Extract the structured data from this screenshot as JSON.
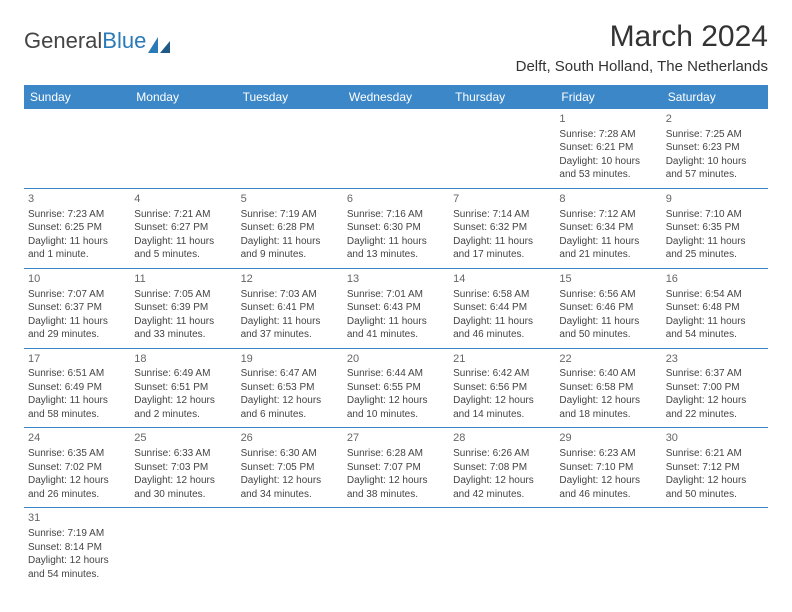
{
  "logo": {
    "text1": "General",
    "text2": "Blue"
  },
  "title": "March 2024",
  "location": "Delft, South Holland, The Netherlands",
  "header_color": "#3b87c8",
  "border_color": "#3b87c8",
  "weekdays": [
    "Sunday",
    "Monday",
    "Tuesday",
    "Wednesday",
    "Thursday",
    "Friday",
    "Saturday"
  ],
  "weeks": [
    [
      null,
      null,
      null,
      null,
      null,
      {
        "d": "1",
        "sr": "Sunrise: 7:28 AM",
        "ss": "Sunset: 6:21 PM",
        "dl": "Daylight: 10 hours and 53 minutes."
      },
      {
        "d": "2",
        "sr": "Sunrise: 7:25 AM",
        "ss": "Sunset: 6:23 PM",
        "dl": "Daylight: 10 hours and 57 minutes."
      }
    ],
    [
      {
        "d": "3",
        "sr": "Sunrise: 7:23 AM",
        "ss": "Sunset: 6:25 PM",
        "dl": "Daylight: 11 hours and 1 minute."
      },
      {
        "d": "4",
        "sr": "Sunrise: 7:21 AM",
        "ss": "Sunset: 6:27 PM",
        "dl": "Daylight: 11 hours and 5 minutes."
      },
      {
        "d": "5",
        "sr": "Sunrise: 7:19 AM",
        "ss": "Sunset: 6:28 PM",
        "dl": "Daylight: 11 hours and 9 minutes."
      },
      {
        "d": "6",
        "sr": "Sunrise: 7:16 AM",
        "ss": "Sunset: 6:30 PM",
        "dl": "Daylight: 11 hours and 13 minutes."
      },
      {
        "d": "7",
        "sr": "Sunrise: 7:14 AM",
        "ss": "Sunset: 6:32 PM",
        "dl": "Daylight: 11 hours and 17 minutes."
      },
      {
        "d": "8",
        "sr": "Sunrise: 7:12 AM",
        "ss": "Sunset: 6:34 PM",
        "dl": "Daylight: 11 hours and 21 minutes."
      },
      {
        "d": "9",
        "sr": "Sunrise: 7:10 AM",
        "ss": "Sunset: 6:35 PM",
        "dl": "Daylight: 11 hours and 25 minutes."
      }
    ],
    [
      {
        "d": "10",
        "sr": "Sunrise: 7:07 AM",
        "ss": "Sunset: 6:37 PM",
        "dl": "Daylight: 11 hours and 29 minutes."
      },
      {
        "d": "11",
        "sr": "Sunrise: 7:05 AM",
        "ss": "Sunset: 6:39 PM",
        "dl": "Daylight: 11 hours and 33 minutes."
      },
      {
        "d": "12",
        "sr": "Sunrise: 7:03 AM",
        "ss": "Sunset: 6:41 PM",
        "dl": "Daylight: 11 hours and 37 minutes."
      },
      {
        "d": "13",
        "sr": "Sunrise: 7:01 AM",
        "ss": "Sunset: 6:43 PM",
        "dl": "Daylight: 11 hours and 41 minutes."
      },
      {
        "d": "14",
        "sr": "Sunrise: 6:58 AM",
        "ss": "Sunset: 6:44 PM",
        "dl": "Daylight: 11 hours and 46 minutes."
      },
      {
        "d": "15",
        "sr": "Sunrise: 6:56 AM",
        "ss": "Sunset: 6:46 PM",
        "dl": "Daylight: 11 hours and 50 minutes."
      },
      {
        "d": "16",
        "sr": "Sunrise: 6:54 AM",
        "ss": "Sunset: 6:48 PM",
        "dl": "Daylight: 11 hours and 54 minutes."
      }
    ],
    [
      {
        "d": "17",
        "sr": "Sunrise: 6:51 AM",
        "ss": "Sunset: 6:49 PM",
        "dl": "Daylight: 11 hours and 58 minutes."
      },
      {
        "d": "18",
        "sr": "Sunrise: 6:49 AM",
        "ss": "Sunset: 6:51 PM",
        "dl": "Daylight: 12 hours and 2 minutes."
      },
      {
        "d": "19",
        "sr": "Sunrise: 6:47 AM",
        "ss": "Sunset: 6:53 PM",
        "dl": "Daylight: 12 hours and 6 minutes."
      },
      {
        "d": "20",
        "sr": "Sunrise: 6:44 AM",
        "ss": "Sunset: 6:55 PM",
        "dl": "Daylight: 12 hours and 10 minutes."
      },
      {
        "d": "21",
        "sr": "Sunrise: 6:42 AM",
        "ss": "Sunset: 6:56 PM",
        "dl": "Daylight: 12 hours and 14 minutes."
      },
      {
        "d": "22",
        "sr": "Sunrise: 6:40 AM",
        "ss": "Sunset: 6:58 PM",
        "dl": "Daylight: 12 hours and 18 minutes."
      },
      {
        "d": "23",
        "sr": "Sunrise: 6:37 AM",
        "ss": "Sunset: 7:00 PM",
        "dl": "Daylight: 12 hours and 22 minutes."
      }
    ],
    [
      {
        "d": "24",
        "sr": "Sunrise: 6:35 AM",
        "ss": "Sunset: 7:02 PM",
        "dl": "Daylight: 12 hours and 26 minutes."
      },
      {
        "d": "25",
        "sr": "Sunrise: 6:33 AM",
        "ss": "Sunset: 7:03 PM",
        "dl": "Daylight: 12 hours and 30 minutes."
      },
      {
        "d": "26",
        "sr": "Sunrise: 6:30 AM",
        "ss": "Sunset: 7:05 PM",
        "dl": "Daylight: 12 hours and 34 minutes."
      },
      {
        "d": "27",
        "sr": "Sunrise: 6:28 AM",
        "ss": "Sunset: 7:07 PM",
        "dl": "Daylight: 12 hours and 38 minutes."
      },
      {
        "d": "28",
        "sr": "Sunrise: 6:26 AM",
        "ss": "Sunset: 7:08 PM",
        "dl": "Daylight: 12 hours and 42 minutes."
      },
      {
        "d": "29",
        "sr": "Sunrise: 6:23 AM",
        "ss": "Sunset: 7:10 PM",
        "dl": "Daylight: 12 hours and 46 minutes."
      },
      {
        "d": "30",
        "sr": "Sunrise: 6:21 AM",
        "ss": "Sunset: 7:12 PM",
        "dl": "Daylight: 12 hours and 50 minutes."
      }
    ],
    [
      {
        "d": "31",
        "sr": "Sunrise: 7:19 AM",
        "ss": "Sunset: 8:14 PM",
        "dl": "Daylight: 12 hours and 54 minutes."
      },
      null,
      null,
      null,
      null,
      null,
      null
    ]
  ]
}
